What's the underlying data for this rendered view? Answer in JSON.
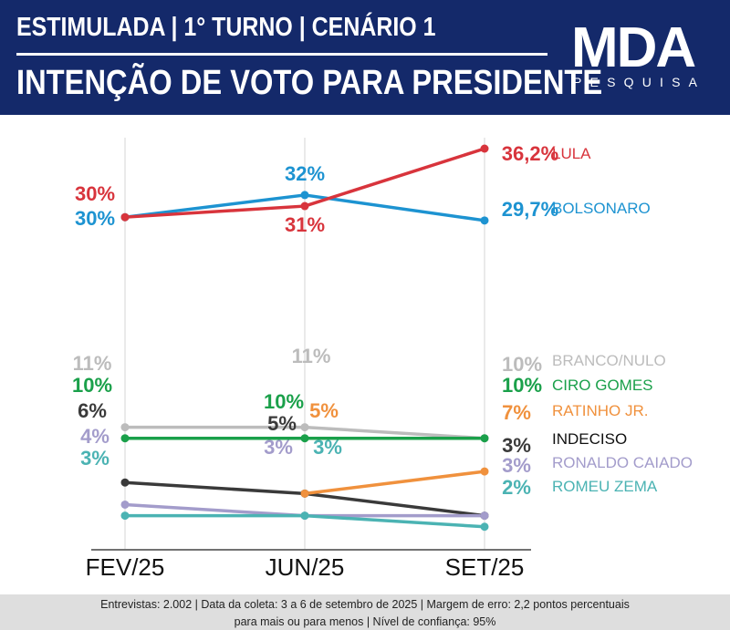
{
  "header": {
    "subtitle": "ESTIMULADA | 1° TURNO | CENÁRIO 1",
    "title": "INTENÇÃO DE VOTO PARA PRESIDENTE",
    "logo_word": "MDA",
    "logo_sub": "PESQUISA"
  },
  "footer": {
    "line1": "Entrevistas: 2.002 | Data da coleta: 3 a 6 de setembro de 2025 | Margem de erro: 2,2 pontos percentuais",
    "line2": "para mais ou para menos | Nível de confiança: 95%"
  },
  "chart_data": {
    "type": "line",
    "categories": [
      "FEV/25",
      "JUN/25",
      "SET/25"
    ],
    "ylim": [
      0,
      40
    ],
    "grid": "vertical lines at each category",
    "legend": "series names printed at right of last point",
    "series": [
      {
        "name": "LULA",
        "color": "#d8343c",
        "values": [
          30,
          31,
          36.2
        ],
        "labels": [
          "30%",
          "31%",
          "36,2%"
        ]
      },
      {
        "name": "BOLSONARO",
        "color": "#1d93d1",
        "values": [
          30,
          32,
          29.7
        ],
        "labels": [
          "30%",
          "32%",
          "29,7%"
        ]
      },
      {
        "name": "BRANCO/NULO",
        "color": "#bcbcbc",
        "values": [
          11,
          11,
          10
        ],
        "labels": [
          "11%",
          "11%",
          "10%"
        ]
      },
      {
        "name": "CIRO GOMES",
        "color": "#1aa04a",
        "values": [
          10,
          10,
          10
        ],
        "labels": [
          "10%",
          "10%",
          "10%"
        ]
      },
      {
        "name": "RATINHO JR.",
        "color": "#f0913d",
        "values": [
          null,
          5,
          7
        ],
        "labels": [
          "",
          "5%",
          "7%"
        ]
      },
      {
        "name": "INDECISO",
        "color": "#3a3a3a",
        "values": [
          6,
          5,
          3
        ],
        "labels": [
          "6%",
          "5%",
          "3%"
        ]
      },
      {
        "name": "RONALDO CAIADO",
        "color": "#a39ccb",
        "values": [
          4,
          3,
          3
        ],
        "labels": [
          "4%",
          "3%",
          "3%"
        ]
      },
      {
        "name": "ROMEU ZEMA",
        "color": "#4bb3b3",
        "values": [
          3,
          3,
          2
        ],
        "labels": [
          "3%",
          "3%",
          "2%"
        ]
      }
    ]
  }
}
